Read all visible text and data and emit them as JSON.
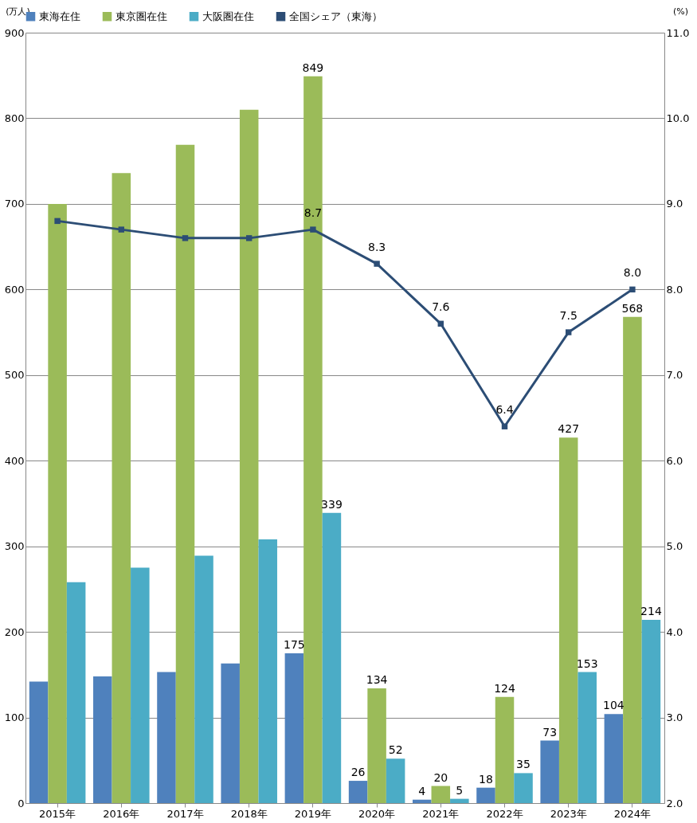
{
  "chart_data": {
    "type": "bar",
    "ylabel": "(万人)",
    "y2label": "(%)",
    "categories": [
      "2015年",
      "2016年",
      "2017年",
      "2018年",
      "2019年",
      "2020年",
      "2021年",
      "2022年",
      "2023年",
      "2024年"
    ],
    "series": [
      {
        "name": "東海在住",
        "color": "#4f81bd",
        "values": [
          142,
          148,
          153,
          163,
          175,
          26,
          4,
          18,
          73,
          104
        ],
        "value_labels": [
          null,
          null,
          null,
          null,
          "175",
          "26",
          "4",
          "18",
          "73",
          "104"
        ]
      },
      {
        "name": "東京圏在住",
        "color": "#9bbb59",
        "values": [
          700,
          736,
          769,
          810,
          849,
          134,
          20,
          124,
          427,
          568
        ],
        "value_labels": [
          null,
          null,
          null,
          null,
          "849",
          "134",
          "20",
          "124",
          "427",
          "568"
        ]
      },
      {
        "name": "大阪圏在住",
        "color": "#4bacc6",
        "values": [
          258,
          275,
          289,
          308,
          339,
          52,
          5,
          35,
          153,
          214
        ],
        "value_labels": [
          null,
          null,
          null,
          null,
          "339",
          "52",
          "5",
          "35",
          "153",
          "214"
        ]
      },
      {
        "name": "全国シェア（東海）",
        "color": "#2c4d75",
        "type": "line",
        "axis": "y2",
        "values": [
          8.8,
          8.7,
          8.6,
          8.6,
          8.7,
          8.3,
          7.6,
          6.4,
          7.5,
          8.0
        ],
        "value_labels": [
          null,
          null,
          null,
          null,
          "8.7",
          "8.3",
          "7.6",
          "6.4",
          "7.5",
          "8.0"
        ]
      }
    ],
    "ylim": [
      0,
      900
    ],
    "yticks": [
      0,
      100,
      200,
      300,
      400,
      500,
      600,
      700,
      800,
      900
    ],
    "y2lim": [
      2,
      11
    ],
    "y2ticks": [
      {
        "value": 2,
        "label": "2.0"
      },
      {
        "value": 3,
        "label": "3.0"
      },
      {
        "value": 4,
        "label": "4.0"
      },
      {
        "value": 5,
        "label": "5.0"
      },
      {
        "value": 6,
        "label": "6.0"
      },
      {
        "value": 7,
        "label": "7.0"
      },
      {
        "value": 8,
        "label": "8.0"
      },
      {
        "value": 9,
        "label": "9.0"
      },
      {
        "value": 10,
        "label": "10.0"
      },
      {
        "value": 11,
        "label": "11.0"
      }
    ],
    "grid": "y",
    "legend": "top",
    "marker": "square",
    "line_style": "solid"
  }
}
